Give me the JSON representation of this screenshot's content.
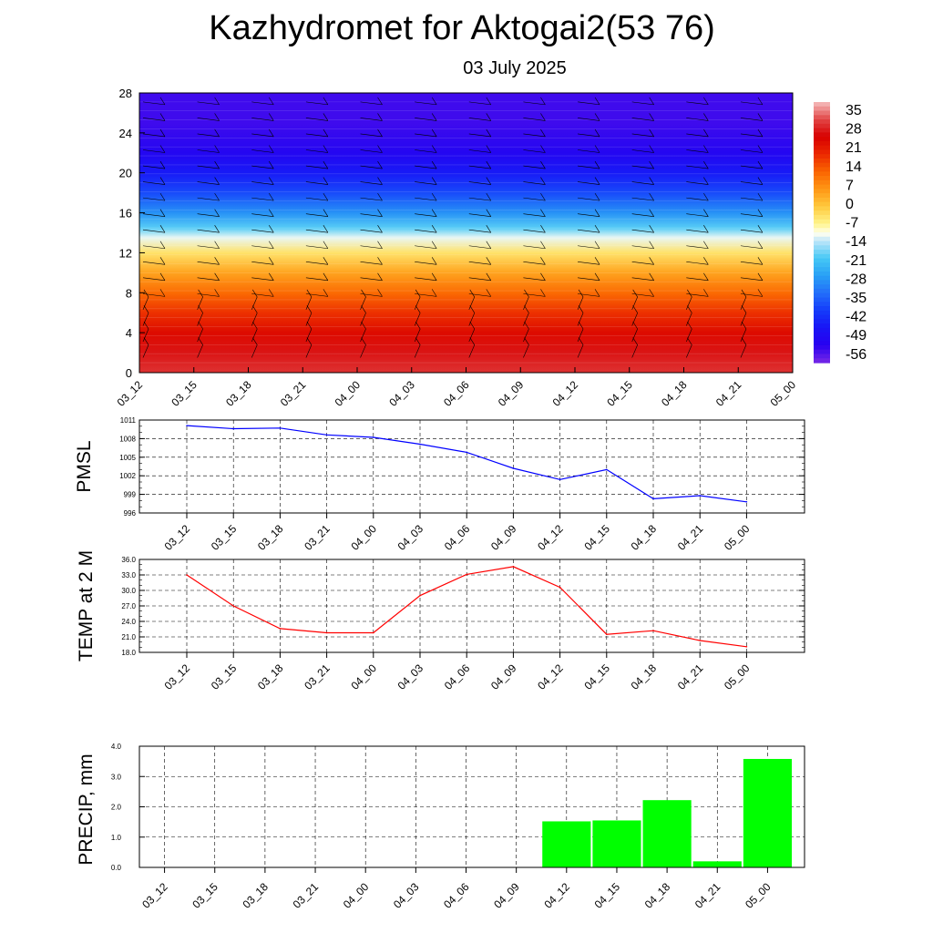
{
  "title": "Kazhydromet for Aktogai2(53 76)",
  "subtitle": "03 July 2025",
  "colors": {
    "pmsl_line": "#0000ff",
    "temp_line": "#ff0000",
    "precip_bar": "#00ff00",
    "grid": "#000000"
  },
  "chart_data": [
    {
      "type": "heatmap",
      "name": "cross-section",
      "x_tick_labels": [
        "03_12",
        "03_15",
        "03_18",
        "03_21",
        "04_00",
        "04_03",
        "04_06",
        "04_09",
        "04_12",
        "04_15",
        "04_18",
        "04_21",
        "05_00"
      ],
      "y_tick_labels": [
        "0",
        "4",
        "8",
        "12",
        "16",
        "20",
        "24",
        "28"
      ],
      "ylim": [
        0,
        28
      ],
      "colorbar_labels": [
        "35",
        "28",
        "21",
        "14",
        "7",
        "0",
        "-7",
        "-14",
        "-21",
        "-28",
        "-35",
        "-42",
        "-49",
        "-56"
      ],
      "colorbar_range": [
        -63,
        42
      ],
      "temperature_by_height": [
        {
          "h": 0,
          "t": 33
        },
        {
          "h": 2,
          "t": 30
        },
        {
          "h": 4,
          "t": 26
        },
        {
          "h": 6,
          "t": 20
        },
        {
          "h": 8,
          "t": 13
        },
        {
          "h": 10,
          "t": 5
        },
        {
          "h": 12,
          "t": -4
        },
        {
          "h": 13.5,
          "t": -12
        },
        {
          "h": 14.5,
          "t": -20
        },
        {
          "h": 16,
          "t": -30
        },
        {
          "h": 18,
          "t": -40
        },
        {
          "h": 20,
          "t": -48
        },
        {
          "h": 22,
          "t": -54
        },
        {
          "h": 25,
          "t": -58
        },
        {
          "h": 28,
          "t": -58
        }
      ]
    },
    {
      "type": "line",
      "name": "pmsl",
      "ylabel": "PMSL",
      "categories": [
        "03_12",
        "03_15",
        "03_18",
        "03_21",
        "04_00",
        "04_03",
        "04_06",
        "04_09",
        "04_12",
        "04_15",
        "04_18",
        "04_21",
        "05_00"
      ],
      "values": [
        1010.1,
        1009.6,
        1009.7,
        1008.6,
        1008.2,
        1007.1,
        1005.8,
        1003.2,
        1001.4,
        1003.0,
        998.3,
        998.8,
        997.8
      ],
      "y_tick_labels": [
        "996",
        "999",
        "1002",
        "1005",
        "1008",
        "1011"
      ],
      "ylim": [
        996,
        1011
      ]
    },
    {
      "type": "line",
      "name": "temp",
      "ylabel": "TEMP at 2 M",
      "categories": [
        "03_12",
        "03_15",
        "03_18",
        "03_21",
        "04_00",
        "04_03",
        "04_06",
        "04_09",
        "04_12",
        "04_15",
        "04_18",
        "04_21",
        "05_00"
      ],
      "values": [
        33.0,
        27.0,
        22.6,
        21.8,
        21.8,
        29.0,
        33.1,
        34.6,
        30.6,
        21.5,
        22.2,
        20.3,
        19.1
      ],
      "y_tick_labels": [
        "18.0",
        "21.0",
        "24.0",
        "27.0",
        "30.0",
        "33.0",
        "36.0"
      ],
      "ylim": [
        18,
        36
      ]
    },
    {
      "type": "bar",
      "name": "precip",
      "ylabel": "PRECIP, mm",
      "categories": [
        "03_12",
        "03_15",
        "03_18",
        "03_21",
        "04_00",
        "04_03",
        "04_06",
        "04_09",
        "04_12",
        "04_15",
        "04_18",
        "04_21",
        "05_00"
      ],
      "values": [
        0,
        0,
        0,
        0,
        0,
        0,
        0,
        0,
        1.52,
        1.55,
        2.22,
        0.2,
        3.58
      ],
      "y_tick_labels": [
        "0.0",
        "1.0",
        "2.0",
        "3.0",
        "4.0"
      ],
      "ylim": [
        0,
        4
      ]
    }
  ]
}
